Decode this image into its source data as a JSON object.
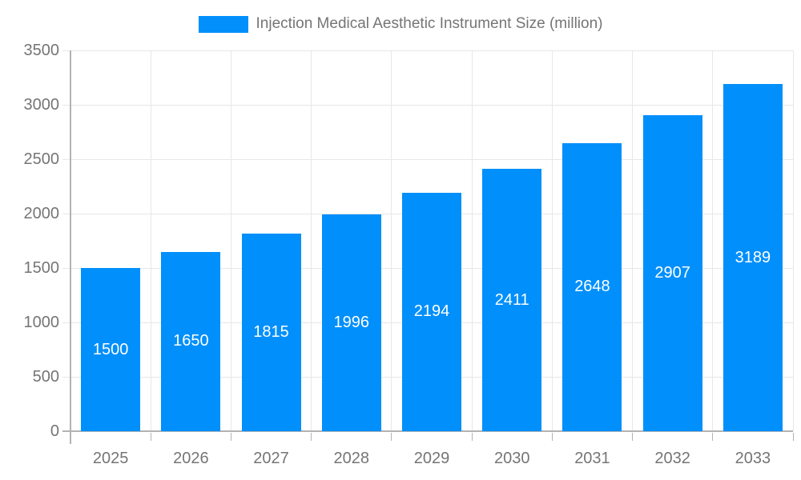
{
  "legend": {
    "label": "Injection Medical Aesthetic Instrument Size (million)"
  },
  "chart_data": {
    "type": "bar",
    "title": "Injection Medical Aesthetic Instrument Size (million)",
    "categories": [
      "2025",
      "2026",
      "2027",
      "2028",
      "2029",
      "2030",
      "2031",
      "2032",
      "2033"
    ],
    "values": [
      1500,
      1650,
      1815,
      1996,
      2194,
      2411,
      2648,
      2907,
      3189
    ],
    "value_labels": [
      "1500",
      "1650",
      "1815",
      "1996",
      "2194",
      "2411",
      "2648",
      "2907",
      "3189"
    ],
    "xlabel": "",
    "ylabel": "",
    "ylim": [
      0,
      3500
    ],
    "yticks": [
      0,
      500,
      1000,
      1500,
      2000,
      2500,
      3000,
      3500
    ],
    "ytick_labels": [
      "0",
      "500",
      "1000",
      "1500",
      "2000",
      "2500",
      "3000",
      "3500"
    ],
    "grid": true,
    "legend_position": "top",
    "colors": {
      "bar": "#008FFB",
      "bar_value_text": "#ffffff",
      "axis_text": "#757575",
      "grid_line": "#e7e7e7",
      "axis_line": "#b3b3b3"
    }
  }
}
